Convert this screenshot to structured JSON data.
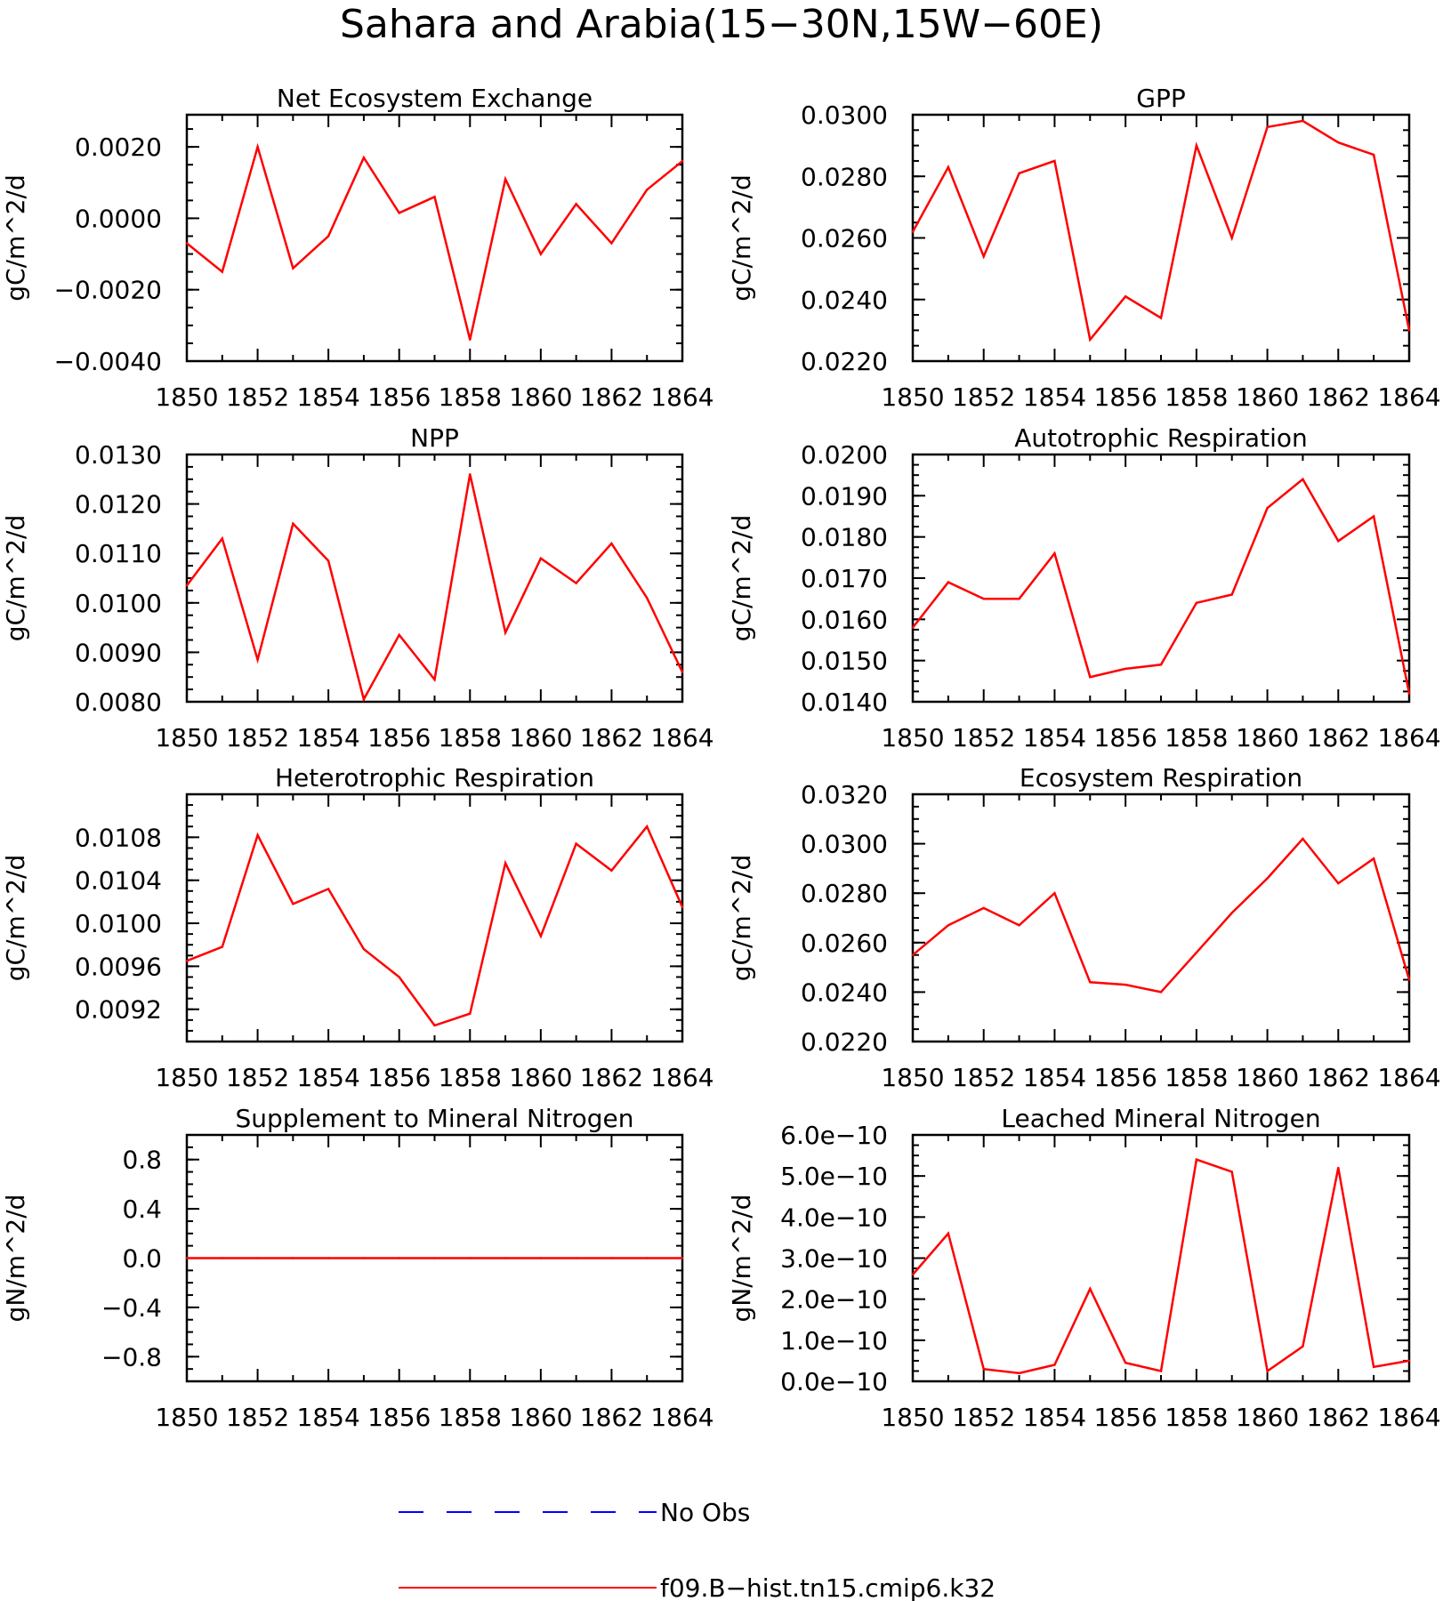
{
  "figure": {
    "title": "Sahara and Arabia(15−30N,15W−60E)"
  },
  "legend": [
    {
      "label": "No Obs",
      "color": "#0000ff",
      "style": "dashed"
    },
    {
      "label": "f09.B−hist.tn15.cmip6.k32",
      "color": "#ff0000",
      "style": "solid"
    }
  ],
  "chart_data": [
    {
      "type": "line",
      "title": "Net Ecosystem Exchange",
      "ylabel": "gC/m^2/d",
      "xlim": [
        1850,
        1864
      ],
      "ylim": [
        -0.004,
        0.0029
      ],
      "xticks": [
        1850,
        1852,
        1854,
        1856,
        1858,
        1860,
        1862,
        1864
      ],
      "xtick_labels": [
        "1850",
        "1852",
        "1854",
        "1856",
        "1858",
        "1860",
        "1862",
        "1864"
      ],
      "yticks": [
        -0.004,
        -0.002,
        0.0,
        0.002
      ],
      "ytick_labels": [
        "−0.0040",
        "−0.0020",
        "0.0000",
        "0.0020"
      ],
      "x": [
        1850,
        1851,
        1852,
        1853,
        1854,
        1855,
        1856,
        1857,
        1858,
        1859,
        1860,
        1861,
        1862,
        1863,
        1864
      ],
      "series": [
        {
          "name": "f09.B−hist.tn15.cmip6.k32",
          "color": "#ff0000",
          "values": [
            -0.0007,
            -0.0015,
            0.002,
            -0.0014,
            -0.0005,
            0.0017,
            0.00015,
            0.0006,
            -0.0034,
            0.0011,
            -0.001,
            0.0004,
            -0.0007,
            0.0008,
            0.0016
          ]
        }
      ]
    },
    {
      "type": "line",
      "title": "GPP",
      "ylabel": "gC/m^2/d",
      "xlim": [
        1850,
        1864
      ],
      "ylim": [
        0.022,
        0.03
      ],
      "xticks": [
        1850,
        1852,
        1854,
        1856,
        1858,
        1860,
        1862,
        1864
      ],
      "xtick_labels": [
        "1850",
        "1852",
        "1854",
        "1856",
        "1858",
        "1860",
        "1862",
        "1864"
      ],
      "yticks": [
        0.022,
        0.024,
        0.026,
        0.028,
        0.03
      ],
      "ytick_labels": [
        "0.0220",
        "0.0240",
        "0.0260",
        "0.0280",
        "0.0300"
      ],
      "x": [
        1850,
        1851,
        1852,
        1853,
        1854,
        1855,
        1856,
        1857,
        1858,
        1859,
        1860,
        1861,
        1862,
        1863,
        1864
      ],
      "series": [
        {
          "name": "f09.B−hist.tn15.cmip6.k32",
          "color": "#ff0000",
          "values": [
            0.0262,
            0.0283,
            0.0254,
            0.0281,
            0.0285,
            0.0227,
            0.0241,
            0.0234,
            0.029,
            0.026,
            0.0296,
            0.0298,
            0.0291,
            0.0287,
            0.023
          ]
        }
      ]
    },
    {
      "type": "line",
      "title": "NPP",
      "ylabel": "gC/m^2/d",
      "xlim": [
        1850,
        1864
      ],
      "ylim": [
        0.008,
        0.013
      ],
      "xticks": [
        1850,
        1852,
        1854,
        1856,
        1858,
        1860,
        1862,
        1864
      ],
      "xtick_labels": [
        "1850",
        "1852",
        "1854",
        "1856",
        "1858",
        "1860",
        "1862",
        "1864"
      ],
      "yticks": [
        0.008,
        0.009,
        0.01,
        0.011,
        0.012,
        0.013
      ],
      "ytick_labels": [
        "0.0080",
        "0.0090",
        "0.0100",
        "0.0110",
        "0.0120",
        "0.0130"
      ],
      "x": [
        1850,
        1851,
        1852,
        1853,
        1854,
        1855,
        1856,
        1857,
        1858,
        1859,
        1860,
        1861,
        1862,
        1863,
        1864
      ],
      "series": [
        {
          "name": "f09.B−hist.tn15.cmip6.k32",
          "color": "#ff0000",
          "values": [
            0.01035,
            0.0113,
            0.00885,
            0.0116,
            0.01085,
            0.00805,
            0.00935,
            0.00845,
            0.0126,
            0.0094,
            0.0109,
            0.0104,
            0.0112,
            0.0101,
            0.0086
          ]
        }
      ]
    },
    {
      "type": "line",
      "title": "Autotrophic Respiration",
      "ylabel": "gC/m^2/d",
      "xlim": [
        1850,
        1864
      ],
      "ylim": [
        0.014,
        0.02
      ],
      "xticks": [
        1850,
        1852,
        1854,
        1856,
        1858,
        1860,
        1862,
        1864
      ],
      "xtick_labels": [
        "1850",
        "1852",
        "1854",
        "1856",
        "1858",
        "1860",
        "1862",
        "1864"
      ],
      "yticks": [
        0.014,
        0.015,
        0.016,
        0.017,
        0.018,
        0.019,
        0.02
      ],
      "ytick_labels": [
        "0.0140",
        "0.0150",
        "0.0160",
        "0.0170",
        "0.0180",
        "0.0190",
        "0.0200"
      ],
      "x": [
        1850,
        1851,
        1852,
        1853,
        1854,
        1855,
        1856,
        1857,
        1858,
        1859,
        1860,
        1861,
        1862,
        1863,
        1864
      ],
      "series": [
        {
          "name": "f09.B−hist.tn15.cmip6.k32",
          "color": "#ff0000",
          "values": [
            0.0158,
            0.0169,
            0.0165,
            0.0165,
            0.0176,
            0.0146,
            0.0148,
            0.0149,
            0.0164,
            0.0166,
            0.0187,
            0.0194,
            0.0179,
            0.0185,
            0.0142
          ]
        }
      ]
    },
    {
      "type": "line",
      "title": "Heterotrophic Respiration",
      "ylabel": "gC/m^2/d",
      "xlim": [
        1850,
        1864
      ],
      "ylim": [
        0.0089,
        0.0112
      ],
      "xticks": [
        1850,
        1852,
        1854,
        1856,
        1858,
        1860,
        1862,
        1864
      ],
      "xtick_labels": [
        "1850",
        "1852",
        "1854",
        "1856",
        "1858",
        "1860",
        "1862",
        "1864"
      ],
      "yticks": [
        0.0092,
        0.0096,
        0.01,
        0.0104,
        0.0108
      ],
      "ytick_labels": [
        "0.0092",
        "0.0096",
        "0.0100",
        "0.0104",
        "0.0108"
      ],
      "x": [
        1850,
        1851,
        1852,
        1853,
        1854,
        1855,
        1856,
        1857,
        1858,
        1859,
        1860,
        1861,
        1862,
        1863,
        1864
      ],
      "series": [
        {
          "name": "f09.B−hist.tn15.cmip6.k32",
          "color": "#ff0000",
          "values": [
            0.00965,
            0.00978,
            0.01082,
            0.01018,
            0.01032,
            0.00976,
            0.0095,
            0.00905,
            0.00916,
            0.01056,
            0.00988,
            0.01074,
            0.01049,
            0.0109,
            0.01015
          ]
        }
      ]
    },
    {
      "type": "line",
      "title": "Ecosystem Respiration",
      "ylabel": "gC/m^2/d",
      "xlim": [
        1850,
        1864
      ],
      "ylim": [
        0.022,
        0.032
      ],
      "xticks": [
        1850,
        1852,
        1854,
        1856,
        1858,
        1860,
        1862,
        1864
      ],
      "xtick_labels": [
        "1850",
        "1852",
        "1854",
        "1856",
        "1858",
        "1860",
        "1862",
        "1864"
      ],
      "yticks": [
        0.022,
        0.024,
        0.026,
        0.028,
        0.03,
        0.032
      ],
      "ytick_labels": [
        "0.0220",
        "0.0240",
        "0.0260",
        "0.0280",
        "0.0300",
        "0.0320"
      ],
      "x": [
        1850,
        1851,
        1852,
        1853,
        1854,
        1855,
        1856,
        1857,
        1858,
        1859,
        1860,
        1861,
        1862,
        1863,
        1864
      ],
      "series": [
        {
          "name": "f09.B−hist.tn15.cmip6.k32",
          "color": "#ff0000",
          "values": [
            0.0255,
            0.0267,
            0.0274,
            0.0267,
            0.028,
            0.0244,
            0.0243,
            0.024,
            0.0256,
            0.0272,
            0.0286,
            0.0302,
            0.0284,
            0.0294,
            0.0245
          ]
        }
      ]
    },
    {
      "type": "line",
      "title": "Supplement to Mineral Nitrogen",
      "ylabel": "gN/m^2/d",
      "xlim": [
        1850,
        1864
      ],
      "ylim": [
        -1.0,
        1.0
      ],
      "xticks": [
        1850,
        1852,
        1854,
        1856,
        1858,
        1860,
        1862,
        1864
      ],
      "xtick_labels": [
        "1850",
        "1852",
        "1854",
        "1856",
        "1858",
        "1860",
        "1862",
        "1864"
      ],
      "yticks": [
        -0.8,
        -0.4,
        0.0,
        0.4,
        0.8
      ],
      "ytick_labels": [
        "−0.8",
        "−0.4",
        "0.0",
        "0.4",
        "0.8"
      ],
      "x": [
        1850,
        1851,
        1852,
        1853,
        1854,
        1855,
        1856,
        1857,
        1858,
        1859,
        1860,
        1861,
        1862,
        1863,
        1864
      ],
      "series": [
        {
          "name": "f09.B−hist.tn15.cmip6.k32",
          "color": "#ff0000",
          "values": [
            0,
            0,
            0,
            0,
            0,
            0,
            0,
            0,
            0,
            0,
            0,
            0,
            0,
            0,
            0
          ]
        }
      ]
    },
    {
      "type": "line",
      "title": "Leached Mineral Nitrogen",
      "ylabel": "gN/m^2/d",
      "xlim": [
        1850,
        1864
      ],
      "ylim": [
        0,
        6e-10
      ],
      "xticks": [
        1850,
        1852,
        1854,
        1856,
        1858,
        1860,
        1862,
        1864
      ],
      "xtick_labels": [
        "1850",
        "1852",
        "1854",
        "1856",
        "1858",
        "1860",
        "1862",
        "1864"
      ],
      "yticks": [
        0,
        1e-10,
        2e-10,
        3e-10,
        4e-10,
        5e-10,
        6e-10
      ],
      "ytick_labels": [
        "0.0e−10",
        "1.0e−10",
        "2.0e−10",
        "3.0e−10",
        "4.0e−10",
        "5.0e−10",
        "6.0e−10"
      ],
      "x": [
        1850,
        1851,
        1852,
        1853,
        1854,
        1855,
        1856,
        1857,
        1858,
        1859,
        1860,
        1861,
        1862,
        1863,
        1864
      ],
      "series": [
        {
          "name": "f09.B−hist.tn15.cmip6.k32",
          "color": "#ff0000",
          "values": [
            2.6e-10,
            3.6e-10,
            3e-11,
            2e-11,
            4e-11,
            2.25e-10,
            4.5e-11,
            2.5e-11,
            5.4e-10,
            5.1e-10,
            2.5e-11,
            8.5e-11,
            5.2e-10,
            3.5e-11,
            5e-11
          ]
        }
      ]
    }
  ]
}
